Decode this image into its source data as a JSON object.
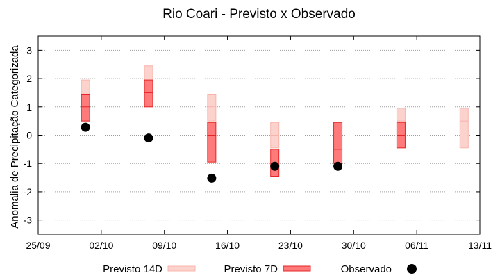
{
  "chart_data": {
    "type": "box-range",
    "title": "Rio Coari - Previsto x Observado",
    "ylabel": "Anomalia de Precipitação Categorizada",
    "xlabel": "",
    "ylim": [
      -3.5,
      3.5
    ],
    "yticks": [
      3,
      2,
      1,
      0,
      -1,
      -2,
      -3
    ],
    "x_tick_labels": [
      "25/09",
      "02/10",
      "09/10",
      "16/10",
      "23/10",
      "30/10",
      "06/11",
      "13/11"
    ],
    "grid": "horizontal dotted",
    "legend_position": "bottom",
    "series": [
      {
        "name": "Previsto 14D",
        "color": "#f8b4ac",
        "fill": "#fbd2cc",
        "points": [
          {
            "week": 0.75,
            "low": 0.5,
            "high": 1.95,
            "median": 1.0
          },
          {
            "week": 1.75,
            "low": 1.0,
            "high": 2.45,
            "median": 1.5
          },
          {
            "week": 2.75,
            "low": 0.5,
            "high": 1.45,
            "median": 1.0
          },
          {
            "week": 3.75,
            "low": -0.45,
            "high": 0.45,
            "median": 0.0
          },
          {
            "week": 5.75,
            "low": -0.45,
            "high": 0.95,
            "median": 0.5
          },
          {
            "week": 6.75,
            "low": -0.45,
            "high": 0.95,
            "median": 0.5
          }
        ]
      },
      {
        "name": "Previsto 7D",
        "color": "#e52424",
        "fill": "#ff7b7b",
        "points": [
          {
            "week": 0.75,
            "low": 0.5,
            "high": 1.45,
            "median": 1.0
          },
          {
            "week": 1.75,
            "low": 1.0,
            "high": 1.95,
            "median": 1.5
          },
          {
            "week": 2.75,
            "low": -0.95,
            "high": 0.45,
            "median": 0.0
          },
          {
            "week": 3.75,
            "low": -1.45,
            "high": -0.5,
            "median": -1.0
          },
          {
            "week": 4.75,
            "low": -1.0,
            "high": 0.45,
            "median": -0.5
          },
          {
            "week": 5.75,
            "low": -0.45,
            "high": 0.45,
            "median": 0.0
          }
        ]
      },
      {
        "name": "Observado",
        "color": "#000000",
        "points": [
          {
            "week": 0.75,
            "value": 0.28
          },
          {
            "week": 1.75,
            "value": -0.1
          },
          {
            "week": 2.75,
            "value": -1.52
          },
          {
            "week": 3.75,
            "value": -1.1
          },
          {
            "week": 4.75,
            "value": -1.1
          }
        ]
      }
    ]
  }
}
